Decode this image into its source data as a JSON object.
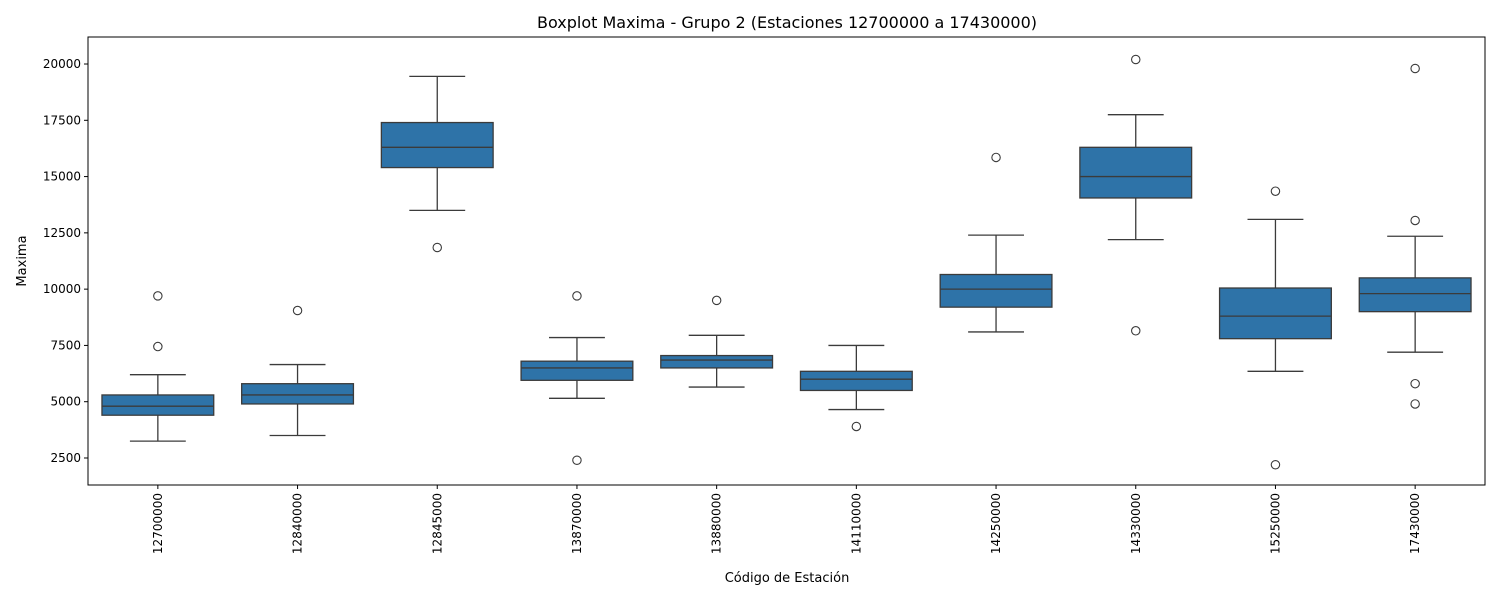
{
  "chart_data": {
    "type": "boxplot",
    "title": "Boxplot Maxima - Grupo 2 (Estaciones 12700000 a 17430000)",
    "xlabel": "Código de Estación",
    "ylabel": "Maxima",
    "ylim": [
      1300,
      21200
    ],
    "yticks": [
      2500,
      5000,
      7500,
      10000,
      12500,
      15000,
      17500,
      20000
    ],
    "grid": false,
    "legend": "none",
    "box_color": "#2e73a8",
    "line_color": "#3b3b3b",
    "stations": [
      {
        "label": "12700000",
        "whisker_low": 3250,
        "q1": 4400,
        "median": 4800,
        "q3": 5300,
        "whisker_high": 6200,
        "outliers": [
          9700,
          7450
        ]
      },
      {
        "label": "12840000",
        "whisker_low": 3500,
        "q1": 4900,
        "median": 5300,
        "q3": 5800,
        "whisker_high": 6650,
        "outliers": [
          9050
        ]
      },
      {
        "label": "12845000",
        "whisker_low": 13500,
        "q1": 15400,
        "median": 16300,
        "q3": 17400,
        "whisker_high": 19450,
        "outliers": [
          11850
        ]
      },
      {
        "label": "13870000",
        "whisker_low": 5150,
        "q1": 5950,
        "median": 6500,
        "q3": 6800,
        "whisker_high": 7850,
        "outliers": [
          9700,
          2400
        ]
      },
      {
        "label": "13880000",
        "whisker_low": 5650,
        "q1": 6500,
        "median": 6850,
        "q3": 7050,
        "whisker_high": 7950,
        "outliers": [
          9500
        ]
      },
      {
        "label": "14110000",
        "whisker_low": 4650,
        "q1": 5500,
        "median": 6000,
        "q3": 6350,
        "whisker_high": 7500,
        "outliers": [
          3900
        ]
      },
      {
        "label": "14250000",
        "whisker_low": 8100,
        "q1": 9200,
        "median": 10000,
        "q3": 10650,
        "whisker_high": 12400,
        "outliers": [
          15850
        ]
      },
      {
        "label": "14330000",
        "whisker_low": 12200,
        "q1": 14050,
        "median": 15000,
        "q3": 16300,
        "whisker_high": 17750,
        "outliers": [
          20200,
          8150
        ]
      },
      {
        "label": "15250000",
        "whisker_low": 6350,
        "q1": 7800,
        "median": 8800,
        "q3": 10050,
        "whisker_high": 13100,
        "outliers": [
          14350,
          2200
        ]
      },
      {
        "label": "17430000",
        "whisker_low": 7200,
        "q1": 9000,
        "median": 9800,
        "q3": 10500,
        "whisker_high": 12350,
        "outliers": [
          19800,
          13050,
          5800,
          4900
        ]
      }
    ]
  }
}
